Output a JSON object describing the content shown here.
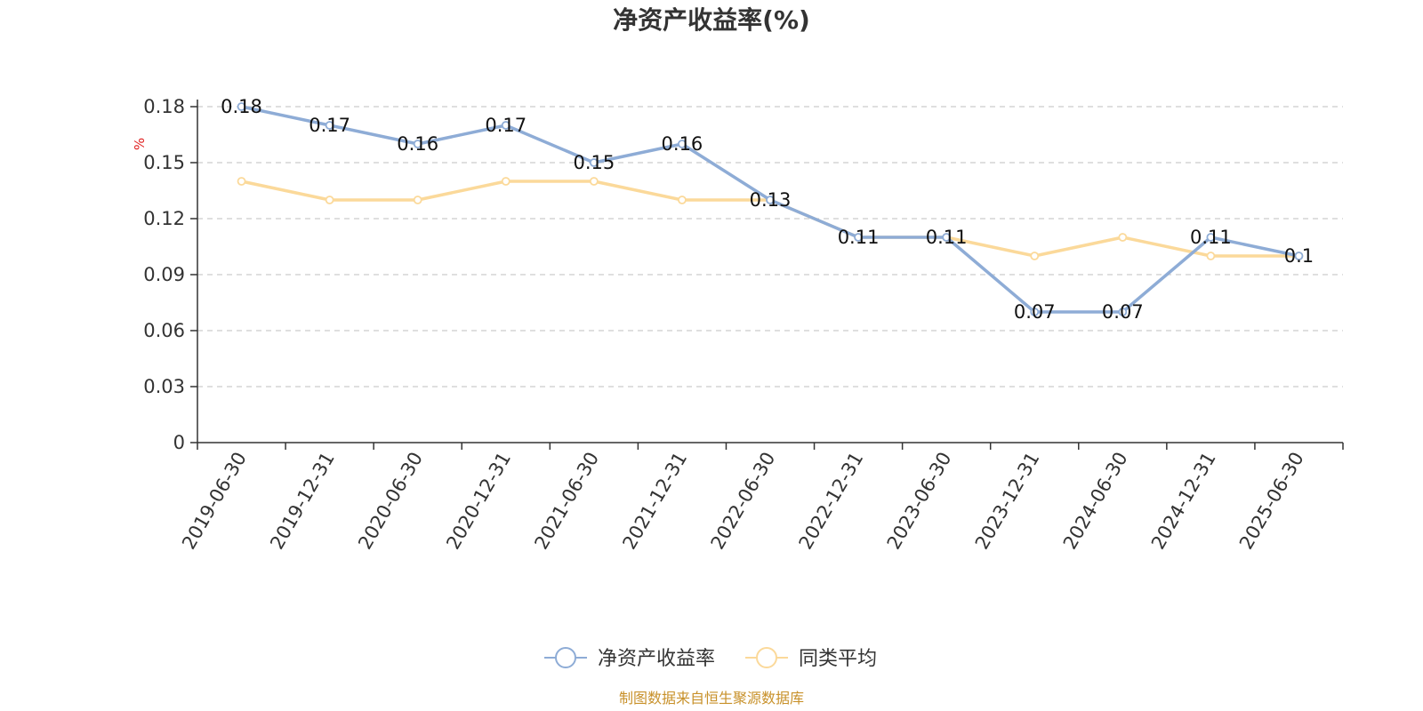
{
  "chart_data": {
    "type": "line",
    "title": "净资产收益率(%)",
    "ylabel": "%",
    "ylim": [
      0,
      0.18
    ],
    "yticks": [
      "0",
      "0.03",
      "0.06",
      "0.09",
      "0.12",
      "0.15",
      "0.18"
    ],
    "grid": true,
    "legend_position": "bottom-center",
    "categories": [
      "2019-06-30",
      "2019-12-31",
      "2020-06-30",
      "2020-12-31",
      "2021-06-30",
      "2021-12-31",
      "2022-06-30",
      "2022-12-31",
      "2023-06-30",
      "2023-12-31",
      "2024-06-30",
      "2024-12-31",
      "2025-06-30"
    ],
    "series": [
      {
        "name": "净资产收益率",
        "color": "#8eacd6",
        "values": [
          0.18,
          0.17,
          0.16,
          0.17,
          0.15,
          0.16,
          0.13,
          0.11,
          0.11,
          0.07,
          0.07,
          0.11,
          0.1
        ],
        "labels": [
          "0.18",
          "0.17",
          "0.16",
          "0.17",
          "0.15",
          "0.16",
          "0.13",
          "0.11",
          "0.11",
          "0.07",
          "0.07",
          "0.11",
          "0.1"
        ]
      },
      {
        "name": "同类平均",
        "color": "#fbd99a",
        "values": [
          0.14,
          0.13,
          0.13,
          0.14,
          0.14,
          0.13,
          0.13,
          0.11,
          0.11,
          0.1,
          0.11,
          0.1,
          0.1
        ]
      }
    ],
    "source": "制图数据来自恒生聚源数据库",
    "colors": {
      "axis": "#333333",
      "grid": "#cccccc",
      "unit": "#e02020",
      "source": "#c8912a"
    }
  }
}
